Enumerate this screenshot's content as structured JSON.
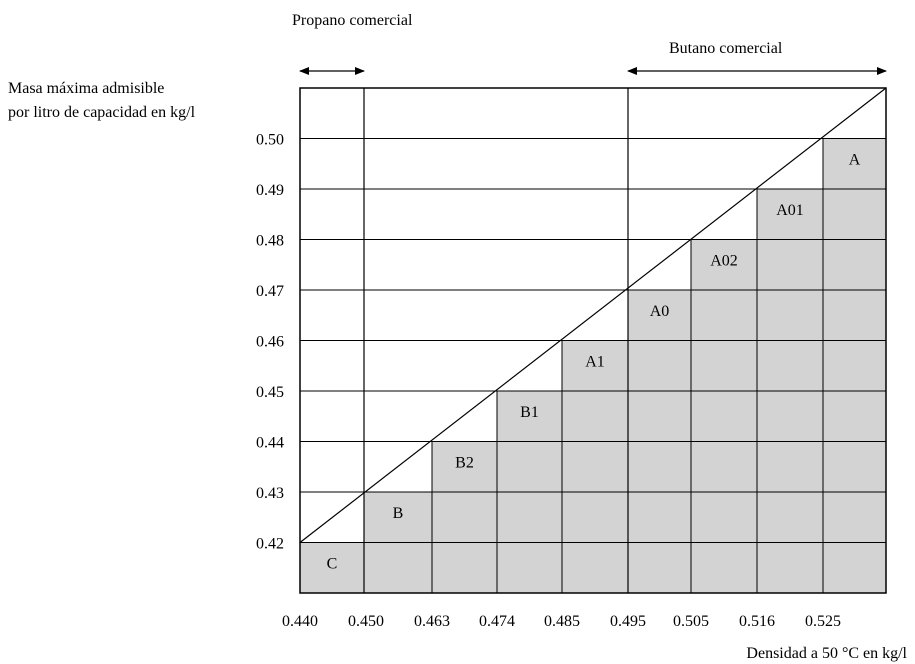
{
  "chart_data": {
    "type": "bar",
    "title": "",
    "xlabel": "Densidad a 50 °C en kg/l",
    "ylabel_lines": [
      "Masa máxima admisible",
      "por litro de capacidad en kg/l"
    ],
    "x_ticks": [
      "0.440",
      "0.450",
      "0.463",
      "0.474",
      "0.485",
      "0.495",
      "0.505",
      "0.516",
      "0.525"
    ],
    "y_ticks": [
      "0.42",
      "0.43",
      "0.44",
      "0.45",
      "0.46",
      "0.47",
      "0.48",
      "0.49",
      "0.50"
    ],
    "ylim": [
      0.41,
      0.51
    ],
    "categories": [
      "C",
      "B",
      "B2",
      "B1",
      "A1",
      "A0",
      "A02",
      "A01",
      "A"
    ],
    "values": [
      0.42,
      0.43,
      0.44,
      0.45,
      0.46,
      0.47,
      0.48,
      0.49,
      0.5
    ],
    "bar_color": "#d3d3d3",
    "grid": true,
    "ranges": [
      {
        "label": "Propano comercial",
        "from": "0.440",
        "to": "0.450"
      },
      {
        "label": "Butano comercial",
        "from": "0.495",
        "to": "end"
      }
    ]
  }
}
